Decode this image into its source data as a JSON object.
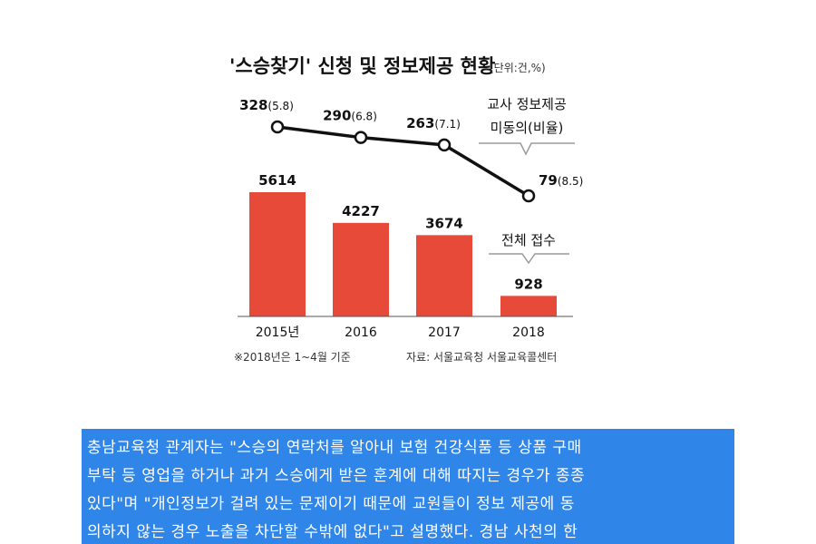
{
  "chart_data": {
    "type": "bar+line",
    "title": "'스승찾기' 신청 및 정보제공 현황",
    "unit_note": "(단위:건,%)",
    "categories": [
      "2015년",
      "2016",
      "2017",
      "2018"
    ],
    "series": [
      {
        "name": "전체 접수",
        "type": "bar",
        "values": [
          5614,
          4227,
          3674,
          928
        ],
        "labels": [
          "5614",
          "4227",
          "3674",
          "928"
        ]
      },
      {
        "name": "교사 정보제공 미동의(비율)",
        "type": "line",
        "values": [
          328,
          290,
          263,
          79
        ],
        "rates": [
          5.8,
          6.8,
          7.1,
          8.5
        ],
        "labels": [
          "328",
          "290",
          "263",
          "79"
        ],
        "rate_labels": [
          "(5.8)",
          "(6.8)",
          "(7.1)",
          "(8.5)"
        ]
      }
    ],
    "line_legend_line1": "교사 정보제공",
    "line_legend_line2": "미동의(비율)",
    "bar_legend": "전체 접수",
    "footnote": "※2018년은 1~4월 기준",
    "source": "자료: 서울교육청 서울교육콜센터",
    "colors": {
      "bar": "#e84a3a",
      "line": "#111111",
      "marker_fill": "#ffffff",
      "legend_box": "#9a9a9a"
    }
  },
  "article": {
    "lines": [
      "충남교육청 관계자는 \"스승의 연락처를 알아내 보험 건강식품 등 상품 구매",
      "부탁 등 영업을 하거나 과거 스승에게 받은 훈계에 대해 따지는 경우가 종종",
      "있다\"며 \"개인정보가 걸려 있는 문제이기 때문에 교원들이 정보 제공에 동",
      "의하지 않는 경우 노출을 차단할 수밖에 없다\"고 설명했다. 경남 사천의 한"
    ]
  }
}
